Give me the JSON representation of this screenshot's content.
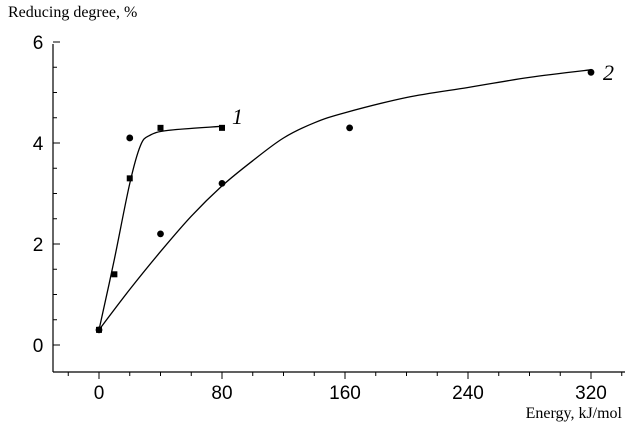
{
  "chart_data": {
    "type": "scatter",
    "ylabel": "Reducing degree, %",
    "xlabel": "Energy, kJ/mol",
    "xlim": [
      -15,
      330
    ],
    "ylim": [
      0,
      6
    ],
    "x_ticks": [
      "0",
      "80",
      "160",
      "240",
      "320"
    ],
    "x_tick_values": [
      0,
      80,
      160,
      240,
      320
    ],
    "y_ticks": [
      "0",
      "2",
      "4",
      "6"
    ],
    "y_tick_values": [
      0,
      2,
      4,
      6
    ],
    "grid": false,
    "series": [
      {
        "name": "1",
        "marker": "square",
        "points": [
          [
            0,
            0.3
          ],
          [
            10,
            1.4
          ],
          [
            20,
            3.3
          ],
          [
            40,
            4.3
          ],
          [
            80,
            4.3
          ]
        ],
        "curve": [
          [
            0,
            0.3
          ],
          [
            10,
            1.7
          ],
          [
            20,
            3.2
          ],
          [
            27,
            3.95
          ],
          [
            33,
            4.15
          ],
          [
            45,
            4.25
          ],
          [
            80,
            4.33
          ]
        ]
      },
      {
        "name": "2",
        "marker": "circle",
        "points": [
          [
            0,
            0.3
          ],
          [
            20,
            4.1
          ],
          [
            40,
            2.2
          ],
          [
            80,
            3.2
          ],
          [
            163,
            4.3
          ],
          [
            320,
            5.4
          ]
        ],
        "curve": [
          [
            0,
            0.3
          ],
          [
            20,
            1.1
          ],
          [
            40,
            1.85
          ],
          [
            60,
            2.55
          ],
          [
            80,
            3.15
          ],
          [
            100,
            3.65
          ],
          [
            120,
            4.1
          ],
          [
            140,
            4.4
          ],
          [
            160,
            4.6
          ],
          [
            200,
            4.9
          ],
          [
            240,
            5.1
          ],
          [
            280,
            5.3
          ],
          [
            320,
            5.45
          ]
        ]
      }
    ]
  }
}
